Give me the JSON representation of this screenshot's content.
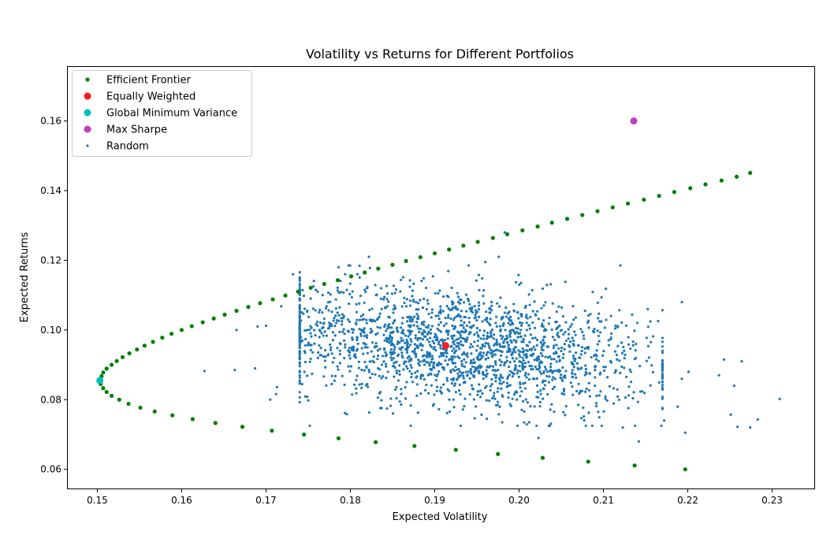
{
  "chart_data": {
    "type": "scatter",
    "title": "Volatility vs Returns for Different Portfolios",
    "xlabel": "Expected Volatility",
    "ylabel": "Expected Returns",
    "xlim": [
      0.1465,
      0.235
    ],
    "ylim": [
      0.0545,
      0.1755
    ],
    "x_ticks": [
      "0.15",
      "0.16",
      "0.17",
      "0.18",
      "0.19",
      "0.20",
      "0.21",
      "0.22",
      "0.23"
    ],
    "y_ticks": [
      "0.06",
      "0.08",
      "0.10",
      "0.12",
      "0.14",
      "0.16"
    ],
    "legend_position": "top-left",
    "series": [
      {
        "name": "Efficient Frontier",
        "color": "#008000",
        "marker": "dot",
        "points": [
          [
            0.2197,
            0.06
          ],
          [
            0.2137,
            0.0611
          ],
          [
            0.2082,
            0.0622
          ],
          [
            0.2028,
            0.0633
          ],
          [
            0.1975,
            0.0644
          ],
          [
            0.1925,
            0.0656
          ],
          [
            0.1876,
            0.0667
          ],
          [
            0.183,
            0.0678
          ],
          [
            0.1786,
            0.0689
          ],
          [
            0.1745,
            0.07
          ],
          [
            0.1707,
            0.0711
          ],
          [
            0.1672,
            0.0722
          ],
          [
            0.164,
            0.0733
          ],
          [
            0.1613,
            0.0744
          ],
          [
            0.1589,
            0.0755
          ],
          [
            0.1568,
            0.0766
          ],
          [
            0.1551,
            0.0777
          ],
          [
            0.1537,
            0.0788
          ],
          [
            0.1526,
            0.08
          ],
          [
            0.1517,
            0.0811
          ],
          [
            0.1511,
            0.0822
          ],
          [
            0.1507,
            0.0833
          ],
          [
            0.1504,
            0.0845
          ],
          [
            0.1503,
            0.0855
          ],
          [
            0.1505,
            0.0867
          ],
          [
            0.1507,
            0.0878
          ],
          [
            0.1511,
            0.0889
          ],
          [
            0.1517,
            0.09
          ],
          [
            0.1523,
            0.0911
          ],
          [
            0.153,
            0.0922
          ],
          [
            0.1538,
            0.0933
          ],
          [
            0.1547,
            0.0944
          ],
          [
            0.1556,
            0.0955
          ],
          [
            0.1566,
            0.0966
          ],
          [
            0.1577,
            0.0978
          ],
          [
            0.1588,
            0.0989
          ],
          [
            0.16,
            0.1
          ],
          [
            0.1612,
            0.1011
          ],
          [
            0.1625,
            0.1022
          ],
          [
            0.1638,
            0.1033
          ],
          [
            0.1651,
            0.1044
          ],
          [
            0.1665,
            0.1055
          ],
          [
            0.1679,
            0.1066
          ],
          [
            0.1693,
            0.1077
          ],
          [
            0.1708,
            0.1088
          ],
          [
            0.1723,
            0.1099
          ],
          [
            0.1738,
            0.111
          ],
          [
            0.1753,
            0.1121
          ],
          [
            0.1769,
            0.1132
          ],
          [
            0.1785,
            0.1143
          ],
          [
            0.1801,
            0.1154
          ],
          [
            0.1817,
            0.1165
          ],
          [
            0.1833,
            0.1176
          ],
          [
            0.185,
            0.1187
          ],
          [
            0.1866,
            0.1198
          ],
          [
            0.1883,
            0.1209
          ],
          [
            0.19,
            0.122
          ],
          [
            0.1917,
            0.1231
          ],
          [
            0.1934,
            0.1242
          ],
          [
            0.1951,
            0.1253
          ],
          [
            0.1969,
            0.1264
          ],
          [
            0.1986,
            0.1275
          ],
          [
            0.2004,
            0.1286
          ],
          [
            0.2022,
            0.1297
          ],
          [
            0.2039,
            0.1308
          ],
          [
            0.2057,
            0.1319
          ],
          [
            0.2075,
            0.133
          ],
          [
            0.2093,
            0.1341
          ],
          [
            0.2111,
            0.1352
          ],
          [
            0.2129,
            0.1363
          ],
          [
            0.2148,
            0.1374
          ],
          [
            0.2166,
            0.1385
          ],
          [
            0.2184,
            0.1396
          ],
          [
            0.2203,
            0.1407
          ],
          [
            0.2221,
            0.1418
          ],
          [
            0.224,
            0.1429
          ],
          [
            0.2258,
            0.144
          ],
          [
            0.2274,
            0.1451
          ]
        ]
      },
      {
        "name": "Equally Weighted",
        "color": "#ff1a1a",
        "marker": "large-dot",
        "points": [
          [
            0.1913,
            0.0955
          ]
        ]
      },
      {
        "name": "Global Minimum Variance",
        "color": "#00bfbf",
        "marker": "large-dot",
        "points": [
          [
            0.1503,
            0.0855
          ]
        ]
      },
      {
        "name": "Max Sharpe",
        "color": "#bf3fbf",
        "marker": "large-dot",
        "points": [
          [
            0.2136,
            0.16
          ]
        ]
      },
      {
        "name": "Random",
        "color": "#1f77b4",
        "marker": "small-dot",
        "count": 2000,
        "center": [
          0.193,
          0.095
        ],
        "spread": [
          0.0115,
          0.0085
        ],
        "outliers": [
          [
            0.1663,
            0.0885
          ],
          [
            0.1627,
            0.0882
          ],
          [
            0.1687,
            0.089
          ],
          [
            0.169,
            0.101
          ],
          [
            0.17,
            0.1012
          ],
          [
            0.1665,
            0.1
          ],
          [
            0.1718,
            0.1068
          ],
          [
            0.1732,
            0.116
          ],
          [
            0.1713,
            0.0836
          ],
          [
            0.1712,
            0.0816
          ],
          [
            0.1705,
            0.08
          ],
          [
            0.1786,
            0.118
          ],
          [
            0.1983,
            0.128
          ],
          [
            0.1976,
            0.121
          ],
          [
            0.1822,
            0.121
          ],
          [
            0.196,
            0.1195
          ],
          [
            0.2093,
            0.0998
          ],
          [
            0.2109,
            0.104
          ],
          [
            0.2134,
            0.1044
          ],
          [
            0.2142,
            0.068
          ],
          [
            0.2172,
            0.074
          ],
          [
            0.2188,
            0.078
          ],
          [
            0.2193,
            0.086
          ],
          [
            0.2193,
            0.108
          ],
          [
            0.2197,
            0.0705
          ],
          [
            0.2201,
            0.088
          ],
          [
            0.2237,
            0.087
          ],
          [
            0.2243,
            0.0915
          ],
          [
            0.2251,
            0.0757
          ],
          [
            0.2255,
            0.084
          ],
          [
            0.2259,
            0.0722
          ],
          [
            0.2264,
            0.091
          ],
          [
            0.2274,
            0.072
          ],
          [
            0.2283,
            0.0743
          ],
          [
            0.2309,
            0.0802
          ],
          [
            0.198,
            0.0735
          ],
          [
            0.2012,
            0.0735
          ],
          [
            0.2023,
            0.069
          ],
          [
            0.2123,
            0.072
          ]
        ]
      }
    ]
  }
}
